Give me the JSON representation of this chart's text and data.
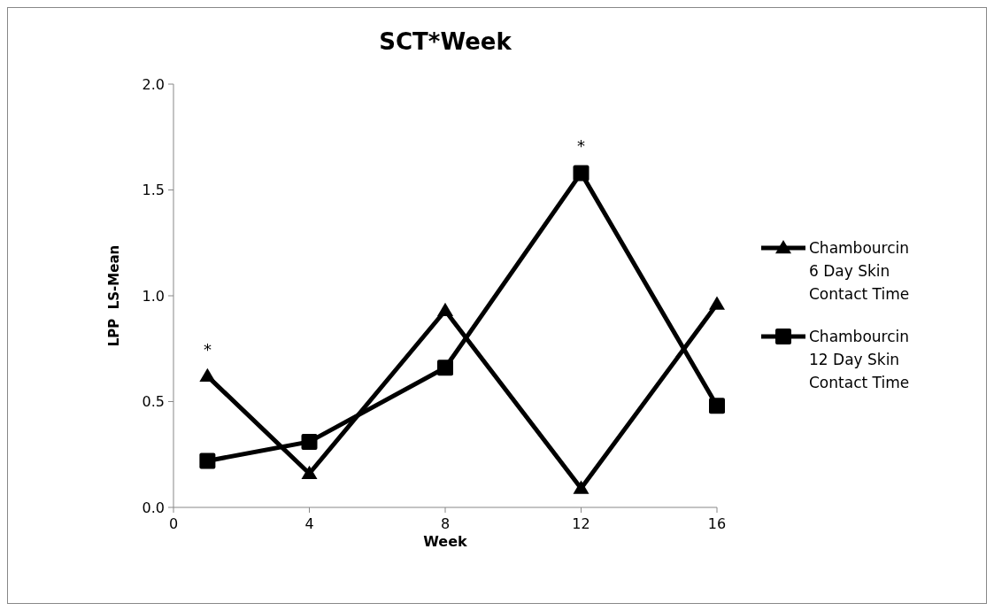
{
  "chart_data": {
    "type": "line",
    "title": "SCT*Week",
    "xlabel": "Week",
    "ylabel": "LPP  LS-Mean",
    "x": [
      1,
      4,
      8,
      12,
      16
    ],
    "xlim": [
      0,
      16
    ],
    "xticks": [
      0,
      4,
      8,
      12,
      16
    ],
    "ylim": [
      0,
      2
    ],
    "yticks": [
      {
        "value": 0,
        "label": "0.0"
      },
      {
        "value": 0.5,
        "label": "0.5"
      },
      {
        "value": 1,
        "label": "1.0"
      },
      {
        "value": 1.5,
        "label": "1.5"
      },
      {
        "value": 2,
        "label": "2.0"
      }
    ],
    "series": [
      {
        "name": "Chambourcin 6 Day Skin Contact Time",
        "color": "#000000",
        "marker": "triangle",
        "values": [
          0.62,
          0.16,
          0.93,
          0.09,
          0.96
        ]
      },
      {
        "name": "Chambourcin 12 Day Skin Contact Time",
        "color": "#000000",
        "marker": "square",
        "values": [
          0.22,
          0.31,
          0.66,
          1.58,
          0.48
        ]
      }
    ],
    "annotations": [
      {
        "text": "*",
        "x": 1,
        "y": 0.62
      },
      {
        "text": "*",
        "x": 12,
        "y": 1.58
      }
    ],
    "legend": "right",
    "grid": false
  }
}
